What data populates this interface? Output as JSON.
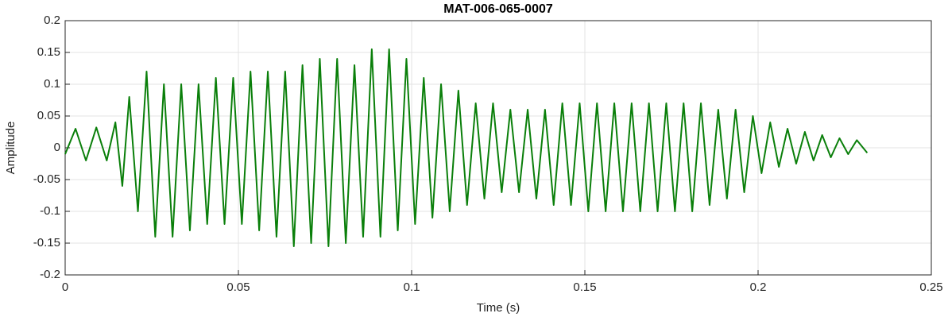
{
  "chart_data": {
    "type": "line",
    "title": "MAT-006-065-0007",
    "x_label": "Time (s)",
    "y_label": "Amplitude",
    "x": [
      0,
      0.003,
      0.006,
      0.009,
      0.012,
      0.0145,
      0.0165,
      0.0185,
      0.021,
      0.0235,
      0.026,
      0.0285,
      0.031,
      0.0335,
      0.036,
      0.0385,
      0.041,
      0.0435,
      0.046,
      0.0485,
      0.051,
      0.0535,
      0.056,
      0.0585,
      0.061,
      0.0635,
      0.066,
      0.0685,
      0.071,
      0.0735,
      0.076,
      0.0785,
      0.081,
      0.0835,
      0.086,
      0.0885,
      0.091,
      0.0935,
      0.096,
      0.0985,
      0.101,
      0.1035,
      0.106,
      0.1085,
      0.111,
      0.1135,
      0.116,
      0.1185,
      0.121,
      0.1235,
      0.126,
      0.1285,
      0.131,
      0.1335,
      0.136,
      0.1385,
      0.141,
      0.1435,
      0.146,
      0.1485,
      0.151,
      0.1535,
      0.156,
      0.1585,
      0.161,
      0.1635,
      0.166,
      0.1685,
      0.171,
      0.1735,
      0.176,
      0.1785,
      0.181,
      0.1835,
      0.186,
      0.1885,
      0.191,
      0.1935,
      0.196,
      0.1985,
      0.201,
      0.2035,
      0.206,
      0.2085,
      0.211,
      0.2135,
      0.216,
      0.2185,
      0.221,
      0.2235,
      0.226,
      0.2285,
      0.2315
    ],
    "series": [
      {
        "name": "Amplitude",
        "color": "#0a7f0a",
        "values": [
          -0.01,
          0.03,
          -0.02,
          0.032,
          -0.02,
          0.04,
          -0.06,
          0.08,
          -0.1,
          0.12,
          -0.14,
          0.1,
          -0.14,
          0.1,
          -0.13,
          0.1,
          -0.12,
          0.11,
          -0.12,
          0.11,
          -0.12,
          0.12,
          -0.13,
          0.12,
          -0.14,
          0.12,
          -0.155,
          0.13,
          -0.15,
          0.14,
          -0.155,
          0.14,
          -0.15,
          0.13,
          -0.14,
          0.155,
          -0.14,
          0.155,
          -0.13,
          0.14,
          -0.12,
          0.11,
          -0.11,
          0.1,
          -0.1,
          0.09,
          -0.09,
          0.07,
          -0.08,
          0.07,
          -0.07,
          0.06,
          -0.07,
          0.06,
          -0.08,
          0.06,
          -0.09,
          0.07,
          -0.09,
          0.07,
          -0.1,
          0.07,
          -0.1,
          0.07,
          -0.1,
          0.07,
          -0.1,
          0.07,
          -0.1,
          0.07,
          -0.1,
          0.07,
          -0.1,
          0.07,
          -0.09,
          0.06,
          -0.08,
          0.06,
          -0.07,
          0.05,
          -0.04,
          0.04,
          -0.03,
          0.03,
          -0.025,
          0.025,
          -0.02,
          0.02,
          -0.015,
          0.015,
          -0.01,
          0.012,
          -0.008
        ]
      }
    ],
    "xlim": [
      0,
      0.25
    ],
    "xticks": [
      0,
      0.05,
      0.1,
      0.15,
      0.2,
      0.25
    ],
    "ylim": [
      -0.2,
      0.2
    ],
    "yticks": [
      -0.2,
      -0.15,
      -0.1,
      -0.05,
      0,
      0.05,
      0.1,
      0.15,
      0.2
    ],
    "grid": true
  }
}
